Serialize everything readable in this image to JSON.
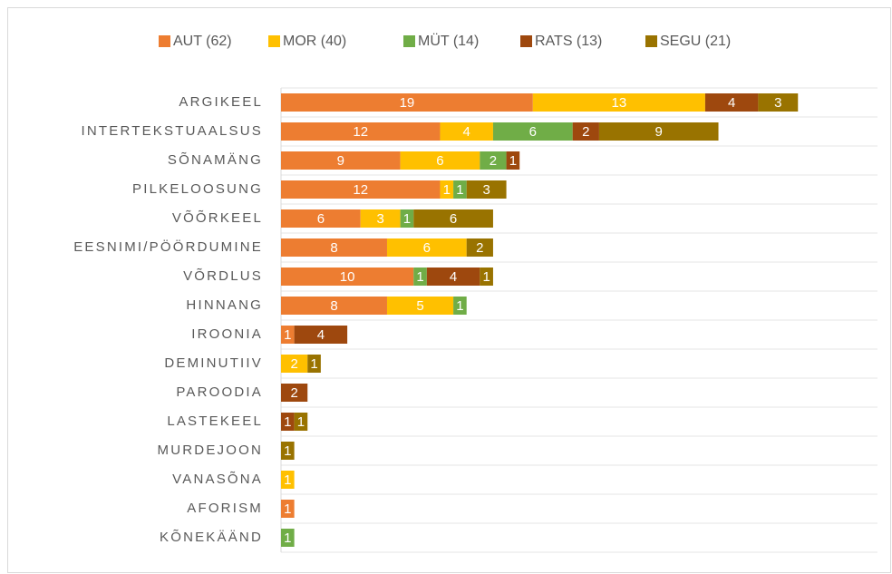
{
  "chart_data": {
    "type": "stacked_barh",
    "categories": [
      "ARGIKEEL",
      "INTERTEKSTUAALSUS",
      "SÕNAMÄNG",
      "PILKELOOSUNG",
      "VÕÕRKEEL",
      "EESNIMI/PÖÖRDUMINE",
      "VÕRDLUS",
      "HINNANG",
      "IROONIA",
      "DEMINUTIIV",
      "PAROODIA",
      "LASTEKEEL",
      "MURDEJOON",
      "VANASÕNA",
      "AFORISM",
      "KÕNEKÄÄND"
    ],
    "series": [
      {
        "name": "AUT (62)",
        "color": "#ED7D31",
        "values": [
          19,
          12,
          9,
          12,
          6,
          8,
          10,
          8,
          1,
          null,
          null,
          null,
          null,
          null,
          1,
          null
        ]
      },
      {
        "name": "MOR (40)",
        "color": "#FFC000",
        "values": [
          13,
          4,
          6,
          1,
          3,
          6,
          null,
          5,
          null,
          2,
          null,
          null,
          null,
          1,
          null,
          null
        ]
      },
      {
        "name": "MÜT (14)",
        "color": "#70AD47",
        "values": [
          null,
          6,
          2,
          1,
          1,
          null,
          1,
          1,
          null,
          null,
          null,
          null,
          null,
          null,
          null,
          1
        ]
      },
      {
        "name": "RATS (13)",
        "color": "#9E480E",
        "values": [
          4,
          2,
          1,
          null,
          null,
          null,
          4,
          null,
          4,
          null,
          2,
          1,
          null,
          null,
          null,
          null
        ]
      },
      {
        "name": "SEGU (21)",
        "color": "#997300",
        "values": [
          3,
          9,
          null,
          3,
          6,
          2,
          1,
          null,
          null,
          1,
          null,
          1,
          1,
          null,
          null,
          null
        ]
      }
    ],
    "xlim": [
      0,
      45
    ],
    "legend": "top"
  }
}
